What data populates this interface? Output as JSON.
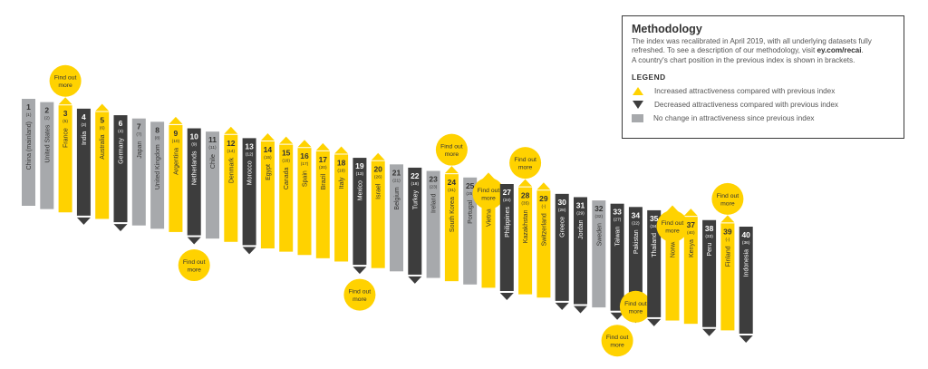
{
  "colors": {
    "up": "#ffd200",
    "down": "#3d3d3d",
    "same": "#a7a9ac",
    "text_dark": "#333333",
    "text_light": "#ffffff"
  },
  "legend": {
    "title": "Methodology",
    "text1": "The index was recalibrated in April 2019, with all underlying datasets fully refreshed. To see a description of our methodology, visit ",
    "link": "ey.com/recai",
    "text2": ".",
    "text3": "A country's chart position in the previous index is shown in brackets.",
    "heading": "LEGEND",
    "up_label": "Increased attractiveness compared with previous index",
    "down_label": "Decreased attractiveness compared with previous index",
    "same_label": "No change in attractiveness since previous index"
  },
  "find_out_more": "Find out more",
  "chart_data": {
    "type": "bar",
    "countries": [
      {
        "rank": 1,
        "prev": "(1)",
        "name": "China (mainland)",
        "change": "same"
      },
      {
        "rank": 2,
        "prev": "(2)",
        "name": "United States",
        "change": "same"
      },
      {
        "rank": 3,
        "prev": "(5)",
        "name": "France",
        "change": "up",
        "find_out_more": "above"
      },
      {
        "rank": 4,
        "prev": "(3)",
        "name": "India",
        "change": "down"
      },
      {
        "rank": 5,
        "prev": "(6)",
        "name": "Australia",
        "change": "up"
      },
      {
        "rank": 6,
        "prev": "(4)",
        "name": "Germany",
        "change": "down"
      },
      {
        "rank": 7,
        "prev": "(7)",
        "name": "Japan",
        "change": "same"
      },
      {
        "rank": 8,
        "prev": "(8)",
        "name": "United Kingdom",
        "change": "same"
      },
      {
        "rank": 9,
        "prev": "(10)",
        "name": "Argentina",
        "change": "up"
      },
      {
        "rank": 10,
        "prev": "(9)",
        "name": "Netherlands",
        "change": "down",
        "find_out_more": "below"
      },
      {
        "rank": 11,
        "prev": "(11)",
        "name": "Chile",
        "change": "same"
      },
      {
        "rank": 12,
        "prev": "(14)",
        "name": "Denmark",
        "change": "up"
      },
      {
        "rank": 13,
        "prev": "(12)",
        "name": "Morocco",
        "change": "down"
      },
      {
        "rank": 14,
        "prev": "(15)",
        "name": "Egypt",
        "change": "up"
      },
      {
        "rank": 15,
        "prev": "(16)",
        "name": "Canada",
        "change": "up"
      },
      {
        "rank": 16,
        "prev": "(17)",
        "name": "Spain",
        "change": "up"
      },
      {
        "rank": 17,
        "prev": "(20)",
        "name": "Brazil",
        "change": "up"
      },
      {
        "rank": 18,
        "prev": "(19)",
        "name": "Italy",
        "change": "up"
      },
      {
        "rank": 19,
        "prev": "(13)",
        "name": "Mexico",
        "change": "down",
        "find_out_more": "below"
      },
      {
        "rank": 20,
        "prev": "(26)",
        "name": "Israel",
        "change": "up"
      },
      {
        "rank": 21,
        "prev": "(21)",
        "name": "Belgium",
        "change": "same"
      },
      {
        "rank": 22,
        "prev": "(18)",
        "name": "Turkey",
        "change": "down"
      },
      {
        "rank": 23,
        "prev": "(23)",
        "name": "Ireland",
        "change": "same"
      },
      {
        "rank": 24,
        "prev": "(31)",
        "name": "South Korea",
        "change": "up",
        "find_out_more": "above"
      },
      {
        "rank": 25,
        "prev": "(25)",
        "name": "Portugal",
        "change": "same"
      },
      {
        "rank": 26,
        "prev": "(-)",
        "name": "Vietnam",
        "change": "up",
        "find_out_more": "below"
      },
      {
        "rank": 27,
        "prev": "(24)",
        "name": "Philippines",
        "change": "down"
      },
      {
        "rank": 28,
        "prev": "(35)",
        "name": "Kazakhstan",
        "change": "up",
        "find_out_more": "above"
      },
      {
        "rank": 29,
        "prev": "(-)",
        "name": "Switzerland",
        "change": "up"
      },
      {
        "rank": 30,
        "prev": "(28)",
        "name": "Greece",
        "change": "down"
      },
      {
        "rank": 31,
        "prev": "(29)",
        "name": "Jordan",
        "change": "down"
      },
      {
        "rank": 32,
        "prev": "(32)",
        "name": "Sweden",
        "change": "same"
      },
      {
        "rank": 33,
        "prev": "(27)",
        "name": "Taiwan",
        "change": "down",
        "find_out_more": "below"
      },
      {
        "rank": 34,
        "prev": "(22)",
        "name": "Pakistan",
        "change": "down",
        "find_out_more": "above"
      },
      {
        "rank": 35,
        "prev": "(34)",
        "name": "Thailand",
        "change": "down"
      },
      {
        "rank": 36,
        "prev": "(-)",
        "name": "Norway",
        "change": "up",
        "find_out_more": "below"
      },
      {
        "rank": 37,
        "prev": "(40)",
        "name": "Kenya",
        "change": "up"
      },
      {
        "rank": 38,
        "prev": "(33)",
        "name": "Peru",
        "change": "down"
      },
      {
        "rank": 39,
        "prev": "(-)",
        "name": "Finland",
        "change": "up",
        "find_out_more": "above"
      },
      {
        "rank": 40,
        "prev": "(36)",
        "name": "Indonesia",
        "change": "down"
      }
    ]
  }
}
